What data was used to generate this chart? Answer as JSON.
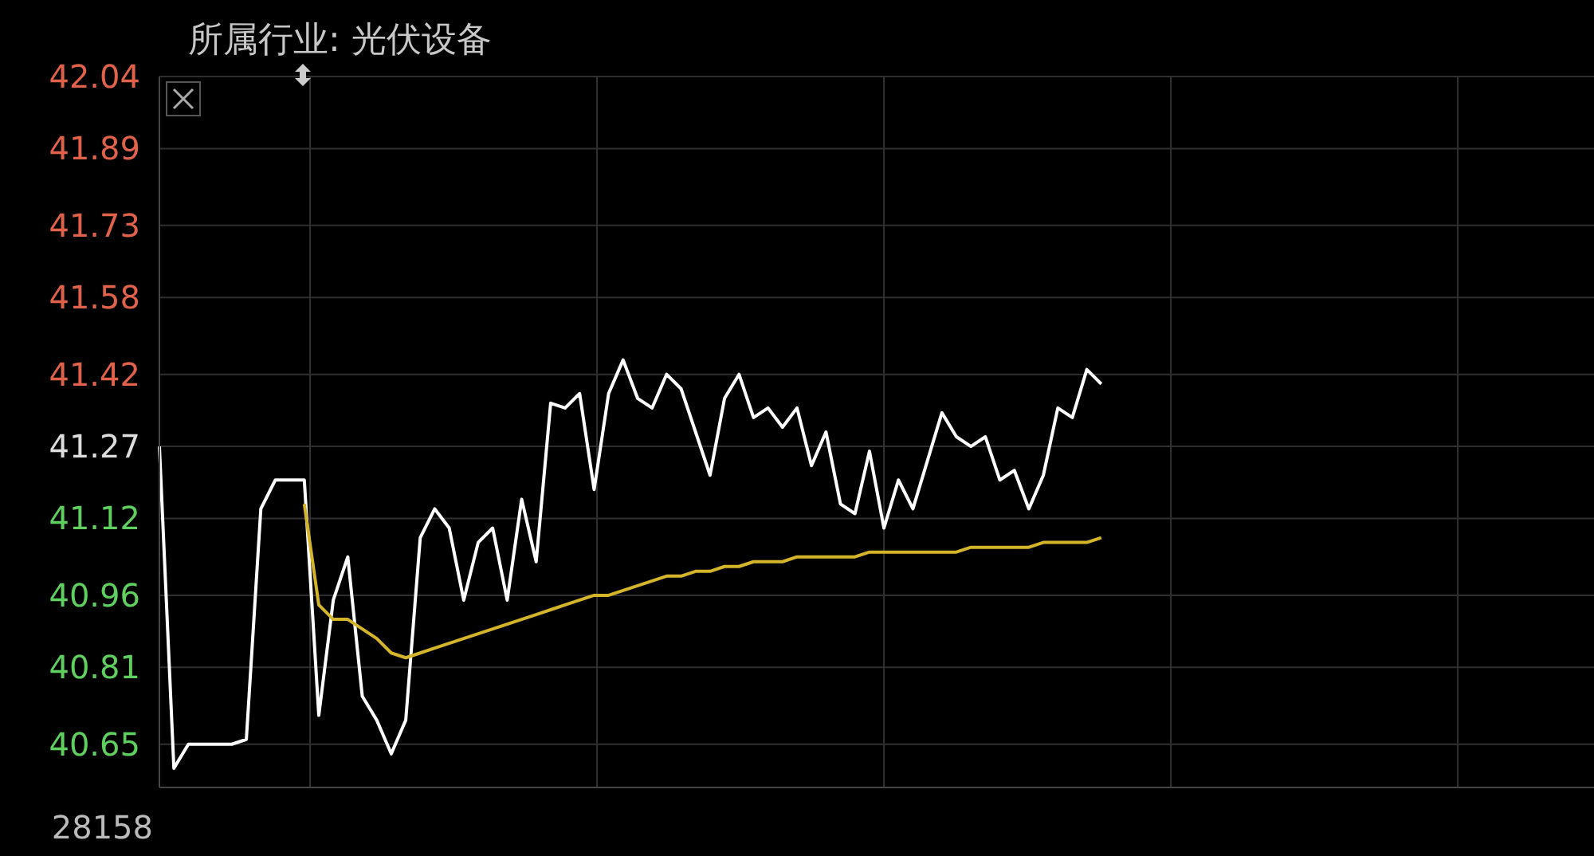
{
  "chart_data": {
    "type": "line",
    "title": "所属行业: 光伏设备",
    "annotations": [
      "28158"
    ],
    "categories": [
      null,
      null,
      null,
      null,
      null,
      null,
      null,
      null,
      null,
      null,
      null,
      null,
      null,
      null,
      null,
      null,
      null,
      null,
      null,
      null,
      null,
      null,
      null,
      null,
      null,
      null,
      null,
      null,
      null,
      null,
      null,
      null,
      null,
      null,
      null,
      null,
      null,
      null,
      null,
      null,
      null,
      null,
      null,
      null,
      null,
      null,
      null,
      null,
      null,
      null,
      null,
      null,
      null,
      null,
      null,
      null,
      null,
      null,
      null,
      null,
      null,
      null,
      null,
      null,
      null,
      null,
      null,
      null,
      null,
      null,
      null,
      null,
      null,
      null,
      null,
      null,
      null,
      null,
      null,
      null,
      null,
      null,
      null,
      null,
      null,
      null,
      null,
      null,
      null,
      null,
      null,
      null,
      null,
      null,
      null,
      null,
      null,
      null,
      null,
      null
    ],
    "ylim": [
      40.56,
      42.04
    ],
    "yticks": [
      40.65,
      40.81,
      40.96,
      41.12,
      41.27,
      41.42,
      41.58,
      41.73,
      41.89,
      42.04
    ],
    "tick_labels": "y",
    "grid": true,
    "marker": "none",
    "line_style": "solid",
    "series": [
      {
        "color": "#ffffff",
        "values": [
          41.27,
          40.6,
          40.65,
          40.65,
          40.65,
          40.65,
          40.66,
          41.14,
          41.2,
          41.2,
          41.2,
          40.71,
          40.95,
          41.04,
          40.75,
          40.7,
          40.63,
          40.7,
          41.08,
          41.14,
          41.1,
          40.95,
          41.07,
          41.1,
          40.95,
          41.16,
          41.03,
          41.36,
          41.35,
          41.38,
          41.18,
          41.38,
          41.45,
          41.37,
          41.35,
          41.42,
          41.39,
          41.3,
          41.21,
          41.37,
          41.42,
          41.33,
          41.35,
          41.31,
          41.35,
          41.23,
          41.3,
          41.15,
          41.13,
          41.26,
          41.1,
          41.2,
          41.14,
          41.24,
          41.34,
          41.29,
          41.27,
          41.29,
          41.2,
          41.22,
          41.14,
          41.21,
          41.35,
          41.33,
          41.43,
          41.4,
          null,
          null,
          null,
          null,
          null,
          null,
          null,
          null,
          null,
          null,
          null,
          null,
          null,
          null,
          null,
          null,
          null,
          null,
          null,
          null,
          null,
          null,
          null,
          null,
          null,
          null,
          null,
          null,
          null,
          null,
          null,
          null,
          null,
          null
        ]
      },
      {
        "color": "#d4b52a",
        "values": [
          null,
          null,
          null,
          null,
          null,
          null,
          null,
          null,
          null,
          null,
          41.15,
          40.94,
          40.91,
          40.91,
          40.89,
          40.87,
          40.84,
          40.83,
          40.84,
          40.85,
          40.86,
          40.87,
          40.88,
          40.89,
          40.9,
          40.91,
          40.92,
          40.93,
          40.94,
          40.95,
          40.96,
          40.96,
          40.97,
          40.98,
          40.99,
          41.0,
          41.0,
          41.01,
          41.01,
          41.02,
          41.02,
          41.03,
          41.03,
          41.03,
          41.04,
          41.04,
          41.04,
          41.04,
          41.04,
          41.05,
          41.05,
          41.05,
          41.05,
          41.05,
          41.05,
          41.05,
          41.06,
          41.06,
          41.06,
          41.06,
          41.06,
          41.07,
          41.07,
          41.07,
          41.07,
          41.08,
          null,
          null,
          null,
          null,
          null,
          null,
          null,
          null,
          null,
          null,
          null,
          null,
          null,
          null,
          null,
          null,
          null,
          null,
          null,
          null,
          null,
          null,
          null,
          null,
          null,
          null,
          null,
          null,
          null,
          null,
          null,
          null,
          null,
          null
        ]
      }
    ]
  }
}
